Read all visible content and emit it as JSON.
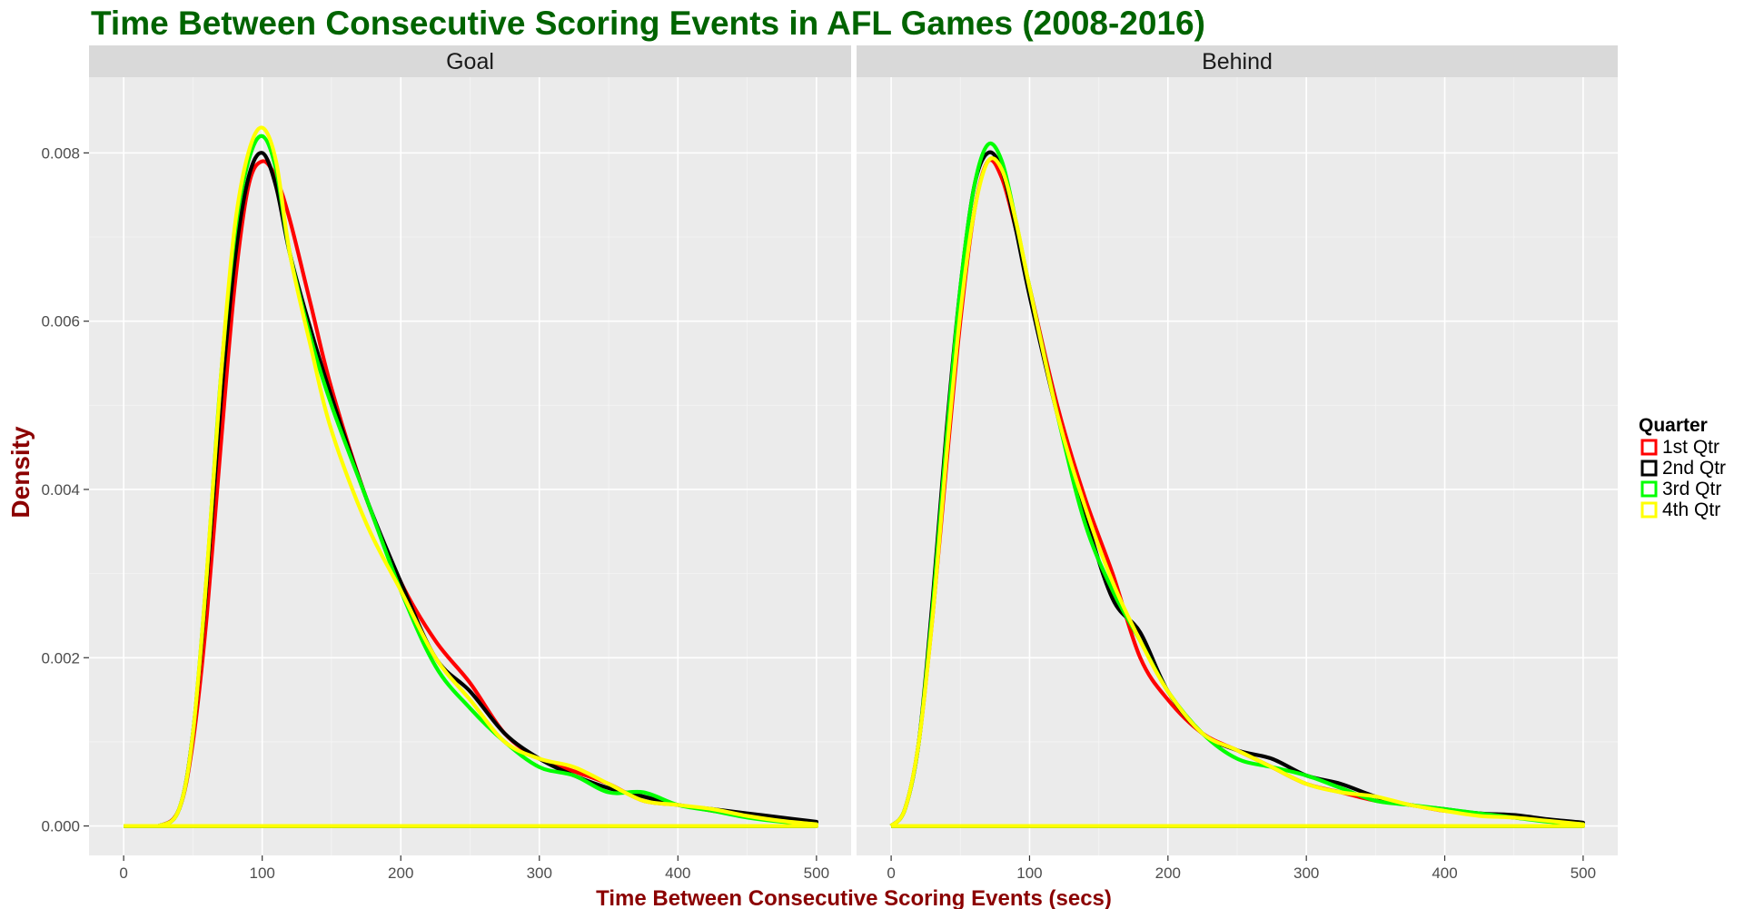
{
  "chart_data": {
    "type": "line",
    "title": "Time Between Consecutive Scoring Events in AFL Games (2008-2016)",
    "xlabel": "Time Between Consecutive Scoring Events (secs)",
    "ylabel": "Density",
    "xlim": [
      -25,
      525
    ],
    "ylim": [
      -0.00035,
      0.0089
    ],
    "x_ticks": [
      0,
      100,
      200,
      300,
      400,
      500
    ],
    "y_ticks": [
      0.0,
      0.002,
      0.004,
      0.006,
      0.008
    ],
    "y_tick_labels": [
      "0.000",
      "0.002",
      "0.004",
      "0.006",
      "0.008"
    ],
    "grid": true,
    "legend": {
      "title": "Quarter",
      "position": "right",
      "entries": [
        {
          "label": "1st Qtr",
          "color": "#FF0000"
        },
        {
          "label": "2nd Qtr",
          "color": "#000000"
        },
        {
          "label": "3rd Qtr",
          "color": "#00FF00"
        },
        {
          "label": "4th Qtr",
          "color": "#FFFF00"
        }
      ]
    },
    "panels": [
      {
        "label": "Goal",
        "series": [
          {
            "name": "1st Qtr",
            "x": [
              0,
              25,
              40,
              50,
              60,
              70,
              80,
              90,
              100,
              110,
              120,
              135,
              150,
              175,
              200,
              225,
              250,
              275,
              300,
              325,
              350,
              375,
              400,
              425,
              450,
              475,
              500
            ],
            "y": [
              0,
              0,
              0.0002,
              0.001,
              0.0025,
              0.0045,
              0.0064,
              0.0076,
              0.0079,
              0.0077,
              0.0072,
              0.0062,
              0.0052,
              0.0039,
              0.0029,
              0.0022,
              0.0017,
              0.0011,
              0.0008,
              0.00065,
              0.0005,
              0.0003,
              0.00025,
              0.00018,
              0.00013,
              8e-05,
              3e-05
            ]
          },
          {
            "name": "2nd Qtr",
            "x": [
              0,
              25,
              40,
              50,
              60,
              70,
              80,
              90,
              100,
              110,
              120,
              135,
              150,
              175,
              200,
              225,
              250,
              275,
              300,
              325,
              350,
              375,
              400,
              425,
              450,
              475,
              500
            ],
            "y": [
              0,
              0,
              0.0002,
              0.0011,
              0.0029,
              0.005,
              0.0067,
              0.0077,
              0.008,
              0.0076,
              0.0068,
              0.0059,
              0.0051,
              0.0039,
              0.0029,
              0.002,
              0.0016,
              0.0011,
              0.0008,
              0.0006,
              0.00045,
              0.00035,
              0.00025,
              0.0002,
              0.00015,
              0.0001,
              5e-05
            ]
          },
          {
            "name": "3rd Qtr",
            "x": [
              0,
              25,
              40,
              50,
              60,
              70,
              80,
              90,
              100,
              110,
              120,
              135,
              150,
              175,
              200,
              225,
              250,
              275,
              300,
              325,
              350,
              375,
              400,
              425,
              450,
              475,
              500
            ],
            "y": [
              0,
              0,
              0.0002,
              0.0011,
              0.003,
              0.0053,
              0.007,
              0.0079,
              0.0082,
              0.0078,
              0.0068,
              0.0058,
              0.005,
              0.0039,
              0.0028,
              0.0019,
              0.0014,
              0.001,
              0.0007,
              0.0006,
              0.0004,
              0.0004,
              0.00025,
              0.00018,
              0.0001,
              5e-05,
              2e-05
            ]
          },
          {
            "name": "4th Qtr",
            "x": [
              0,
              25,
              40,
              50,
              60,
              70,
              80,
              90,
              100,
              110,
              120,
              135,
              150,
              175,
              200,
              225,
              250,
              275,
              300,
              325,
              350,
              375,
              400,
              425,
              450,
              475,
              500
            ],
            "y": [
              0,
              0,
              0.0002,
              0.0011,
              0.003,
              0.0053,
              0.0071,
              0.008,
              0.0083,
              0.0079,
              0.0068,
              0.0057,
              0.0047,
              0.0036,
              0.0028,
              0.002,
              0.0015,
              0.001,
              0.0008,
              0.0007,
              0.0005,
              0.0003,
              0.00025,
              0.0002,
              0.00012,
              6e-05,
              2e-05
            ]
          }
        ]
      },
      {
        "label": "Behind",
        "series": [
          {
            "name": "1st Qtr",
            "x": [
              0,
              10,
              20,
              30,
              40,
              50,
              60,
              70,
              80,
              90,
              100,
              120,
              140,
              160,
              180,
              200,
              225,
              250,
              275,
              300,
              325,
              350,
              375,
              400,
              425,
              450,
              475,
              500
            ],
            "y": [
              0,
              0.0002,
              0.001,
              0.0025,
              0.0043,
              0.006,
              0.0073,
              0.0079,
              0.0077,
              0.0071,
              0.0064,
              0.005,
              0.0039,
              0.003,
              0.002,
              0.0015,
              0.0011,
              0.0009,
              0.0007,
              0.0005,
              0.0004,
              0.0003,
              0.00025,
              0.00018,
              0.00015,
              0.0001,
              6e-05,
              2e-05
            ]
          },
          {
            "name": "2nd Qtr",
            "x": [
              0,
              10,
              20,
              30,
              40,
              50,
              60,
              70,
              80,
              90,
              100,
              120,
              140,
              160,
              180,
              200,
              225,
              250,
              275,
              300,
              325,
              350,
              375,
              400,
              425,
              450,
              475,
              500
            ],
            "y": [
              0,
              0.0002,
              0.001,
              0.0027,
              0.0047,
              0.0064,
              0.0076,
              0.008,
              0.0078,
              0.0071,
              0.0063,
              0.0049,
              0.0037,
              0.0027,
              0.0023,
              0.0016,
              0.0011,
              0.0009,
              0.0008,
              0.0006,
              0.0005,
              0.00035,
              0.00025,
              0.0002,
              0.00015,
              0.00013,
              8e-05,
              4e-05
            ]
          },
          {
            "name": "3rd Qtr",
            "x": [
              0,
              10,
              20,
              30,
              40,
              50,
              60,
              70,
              80,
              90,
              100,
              120,
              140,
              160,
              180,
              200,
              225,
              250,
              275,
              300,
              325,
              350,
              375,
              400,
              425,
              450,
              475,
              500
            ],
            "y": [
              0,
              0.0002,
              0.001,
              0.0026,
              0.0046,
              0.0064,
              0.0076,
              0.0081,
              0.0079,
              0.0072,
              0.0064,
              0.0049,
              0.0036,
              0.0028,
              0.0022,
              0.0016,
              0.0011,
              0.0008,
              0.0007,
              0.0006,
              0.00045,
              0.0003,
              0.00025,
              0.0002,
              0.00015,
              0.0001,
              5e-05,
              2e-05
            ]
          },
          {
            "name": "4th Qtr",
            "x": [
              0,
              10,
              20,
              30,
              40,
              50,
              60,
              70,
              80,
              90,
              100,
              120,
              140,
              160,
              180,
              200,
              225,
              250,
              275,
              300,
              325,
              350,
              375,
              400,
              425,
              450,
              475,
              500
            ],
            "y": [
              0,
              0.0002,
              0.001,
              0.0025,
              0.0044,
              0.0061,
              0.0073,
              0.0079,
              0.0078,
              0.0072,
              0.0064,
              0.0049,
              0.0038,
              0.0029,
              0.0022,
              0.0016,
              0.0011,
              0.0009,
              0.0007,
              0.0005,
              0.0004,
              0.00035,
              0.00025,
              0.00018,
              0.00012,
              0.0001,
              6e-05,
              2e-05
            ]
          }
        ]
      }
    ]
  }
}
